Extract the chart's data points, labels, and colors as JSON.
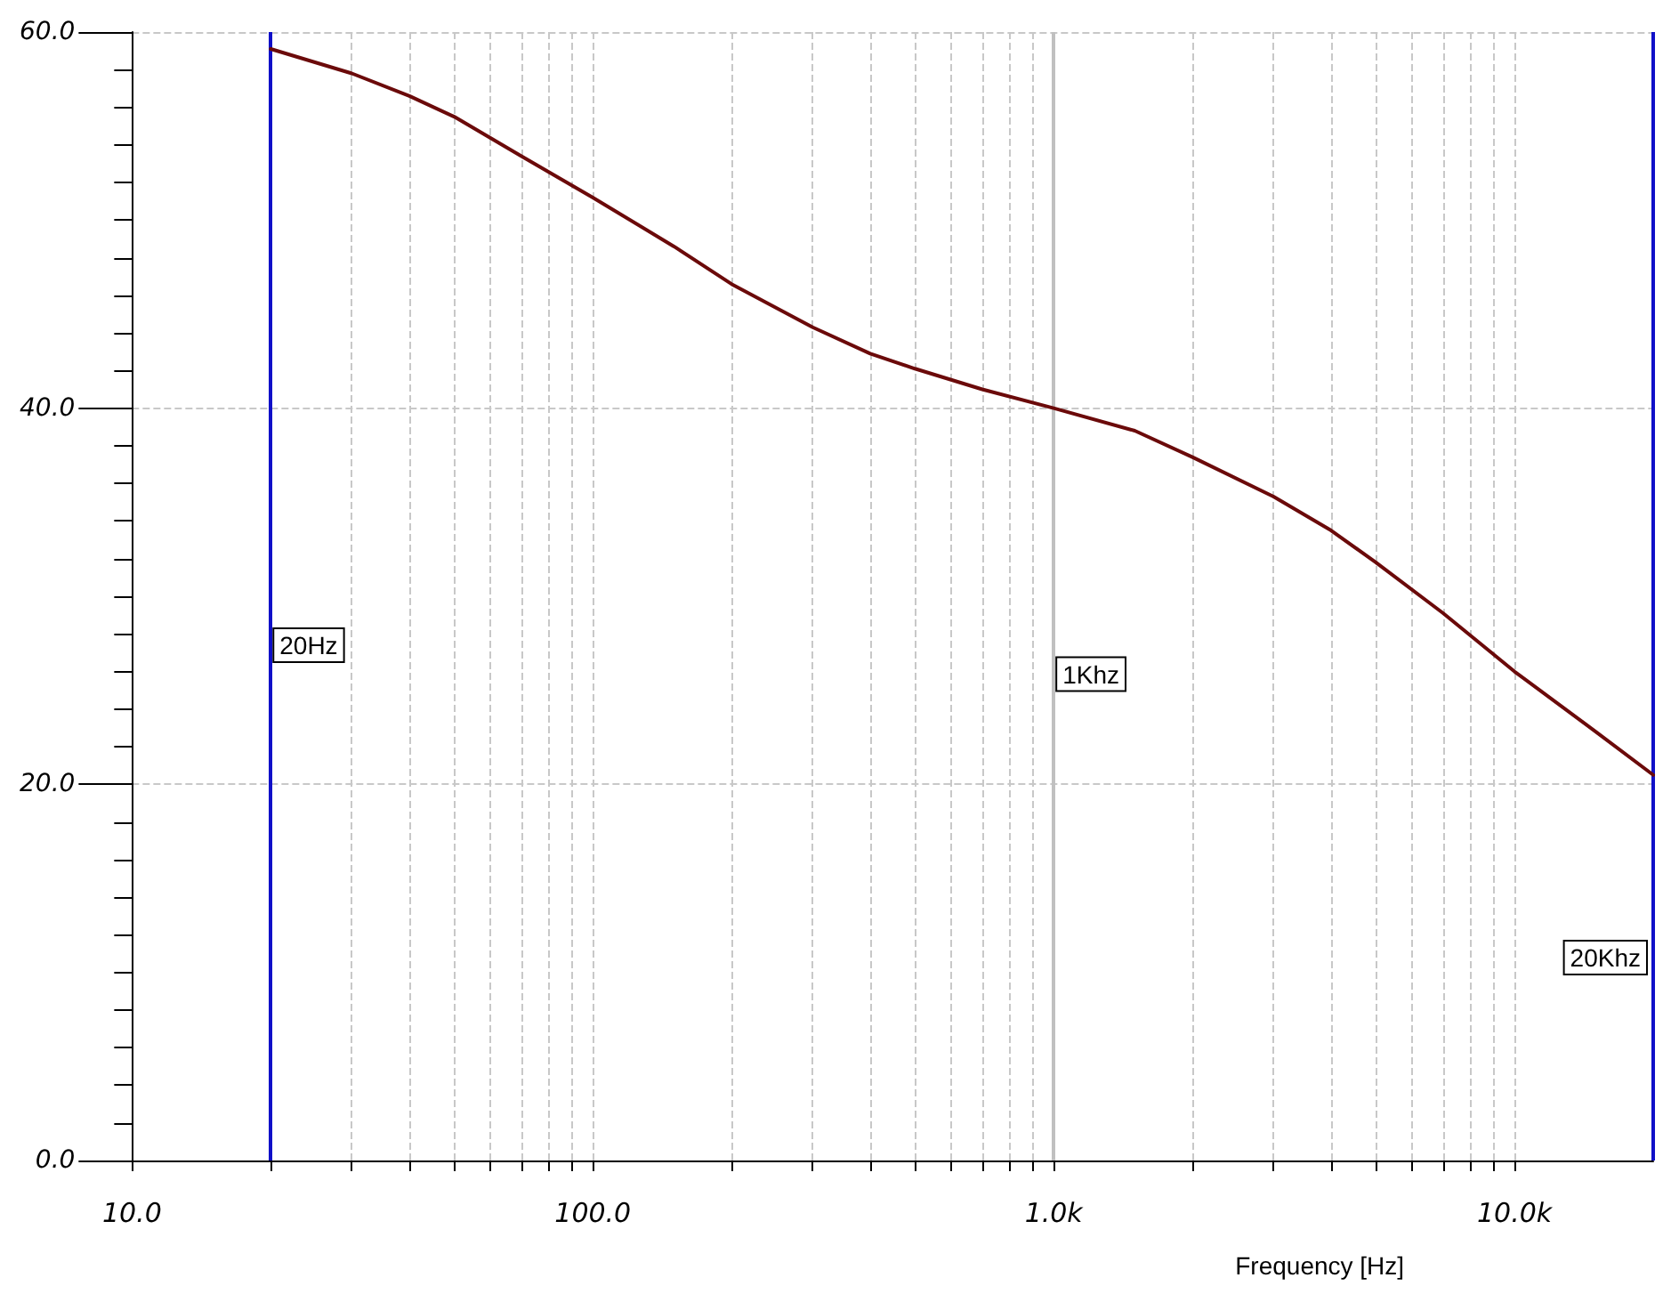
{
  "chart_data": {
    "type": "line",
    "xlabel": "Frequency [Hz]",
    "log": "x",
    "grid": true,
    "marker": "none",
    "line_style": "solid",
    "x": [
      20,
      30,
      40,
      50,
      70,
      100,
      150,
      200,
      300,
      400,
      500,
      700,
      1000,
      1500,
      2000,
      3000,
      4000,
      5000,
      7000,
      10000,
      15000,
      20000
    ],
    "series": [
      {
        "color": "#6b0a0a",
        "values": [
          59.1,
          57.8,
          56.6,
          55.5,
          53.4,
          51.2,
          48.6,
          46.6,
          44.3,
          42.9,
          42.1,
          41.0,
          40.0,
          38.8,
          37.4,
          35.3,
          33.5,
          31.8,
          29.1,
          26.0,
          22.8,
          20.5
        ]
      }
    ],
    "xlim": [
      10,
      20000
    ],
    "xticks": [
      {
        "value": 10,
        "label": "10.0"
      },
      {
        "value": 20,
        "label": null
      },
      {
        "value": 30,
        "label": null
      },
      {
        "value": 40,
        "label": null
      },
      {
        "value": 50,
        "label": null
      },
      {
        "value": 60,
        "label": null
      },
      {
        "value": 70,
        "label": null
      },
      {
        "value": 80,
        "label": null
      },
      {
        "value": 90,
        "label": null
      },
      {
        "value": 100,
        "label": "100.0"
      },
      {
        "value": 200,
        "label": null
      },
      {
        "value": 300,
        "label": null
      },
      {
        "value": 400,
        "label": null
      },
      {
        "value": 500,
        "label": null
      },
      {
        "value": 600,
        "label": null
      },
      {
        "value": 700,
        "label": null
      },
      {
        "value": 800,
        "label": null
      },
      {
        "value": 900,
        "label": null
      },
      {
        "value": 1000,
        "label": "1.0k"
      },
      {
        "value": 2000,
        "label": null
      },
      {
        "value": 3000,
        "label": null
      },
      {
        "value": 4000,
        "label": null
      },
      {
        "value": 5000,
        "label": null
      },
      {
        "value": 6000,
        "label": null
      },
      {
        "value": 7000,
        "label": null
      },
      {
        "value": 8000,
        "label": null
      },
      {
        "value": 9000,
        "label": null
      },
      {
        "value": 10000,
        "label": "10.0k"
      }
    ],
    "ylim": [
      0,
      60
    ],
    "yticks": [
      {
        "value": 0,
        "label": "0.0"
      },
      {
        "value": 2,
        "label": null
      },
      {
        "value": 4,
        "label": null
      },
      {
        "value": 6,
        "label": null
      },
      {
        "value": 8,
        "label": null
      },
      {
        "value": 10,
        "label": null
      },
      {
        "value": 12,
        "label": null
      },
      {
        "value": 14,
        "label": null
      },
      {
        "value": 16,
        "label": null
      },
      {
        "value": 18,
        "label": null
      },
      {
        "value": 20,
        "label": "20.0"
      },
      {
        "value": 22,
        "label": null
      },
      {
        "value": 24,
        "label": null
      },
      {
        "value": 26,
        "label": null
      },
      {
        "value": 28,
        "label": null
      },
      {
        "value": 30,
        "label": null
      },
      {
        "value": 32,
        "label": null
      },
      {
        "value": 34,
        "label": null
      },
      {
        "value": 36,
        "label": null
      },
      {
        "value": 38,
        "label": null
      },
      {
        "value": 40,
        "label": "40.0"
      },
      {
        "value": 42,
        "label": null
      },
      {
        "value": 44,
        "label": null
      },
      {
        "value": 46,
        "label": null
      },
      {
        "value": 48,
        "label": null
      },
      {
        "value": 50,
        "label": null
      },
      {
        "value": 52,
        "label": null
      },
      {
        "value": 54,
        "label": null
      },
      {
        "value": 56,
        "label": null
      },
      {
        "value": 58,
        "label": null
      },
      {
        "value": 60,
        "label": "60.0"
      }
    ],
    "ref_lines": [
      {
        "axis": "x",
        "value": 20,
        "label": "20Hz",
        "color": "#1010c8"
      },
      {
        "axis": "x",
        "value": 1000,
        "label": "1Khz",
        "color": "#c0c0c0"
      },
      {
        "axis": "x",
        "value": 20000,
        "label": "20Khz",
        "color": "#1010c8"
      }
    ]
  }
}
